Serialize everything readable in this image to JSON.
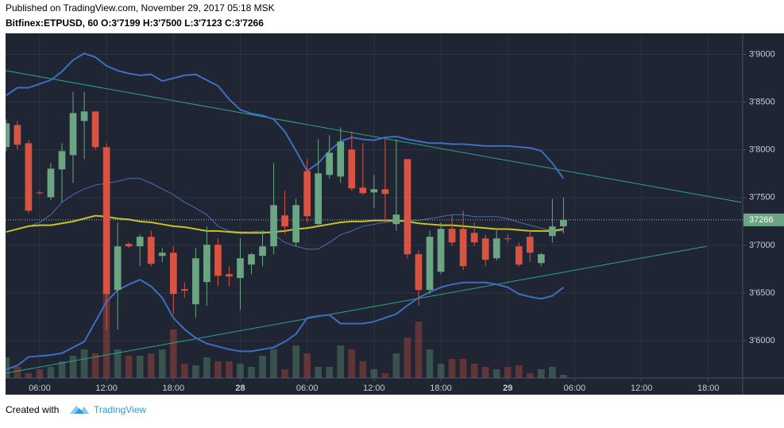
{
  "header": {
    "published": "Published on TradingView.com, November 29, 2017 05:18 MSK",
    "symbol_line": "Bitfinex:ETPUSD, 60 O:3'7199 H:3'7500 L:3'7123 C:3'7266"
  },
  "footer": {
    "created_with": "Created with",
    "brand": "TradingView"
  },
  "chart_data": {
    "type": "candlestick",
    "x": [
      3,
      4,
      5,
      6,
      7,
      8,
      9,
      10,
      11,
      12,
      13,
      14,
      15,
      16,
      17,
      18,
      19,
      20,
      21,
      22,
      23,
      24,
      25,
      26,
      27,
      28,
      29,
      30,
      31,
      32,
      33,
      34,
      35,
      36,
      37,
      38,
      39,
      40,
      41,
      42,
      43,
      44,
      45,
      46,
      47,
      48,
      49,
      50,
      51,
      52,
      53
    ],
    "open": [
      3.8028,
      3.826,
      3.8069,
      3.7554,
      3.7504,
      3.7795,
      3.7945,
      3.8302,
      3.8402,
      3.8028,
      3.6532,
      3.7014,
      3.6989,
      3.7089,
      3.6889,
      3.6922,
      3.654,
      3.6382,
      3.6615,
      3.7006,
      3.6698,
      3.6657,
      3.6798,
      3.6889,
      3.6989,
      3.7313,
      3.703,
      3.7778,
      3.7222,
      3.7737,
      3.772,
      3.8003,
      3.7604,
      3.7554,
      3.7587,
      3.7222,
      3.7903,
      3.6906,
      3.6532,
      3.6723,
      3.7172,
      3.7172,
      3.713,
      3.7072,
      3.6864,
      3.7072,
      3.6989,
      3.7089,
      3.6814,
      3.7097,
      3.7199
    ],
    "high": [
      3.8318,
      3.8302,
      3.8102,
      3.757,
      3.7861,
      3.8069,
      3.8609,
      3.8609,
      3.8402,
      3.8069,
      3.7238,
      3.703,
      3.7114,
      3.7155,
      3.6972,
      3.6989,
      3.6615,
      3.6972,
      3.7197,
      3.7072,
      3.6781,
      3.7072,
      3.6922,
      3.7155,
      3.7861,
      3.7571,
      3.7488,
      3.7903,
      3.8111,
      3.8152,
      3.8235,
      3.8194,
      3.8069,
      3.7737,
      3.8111,
      3.8111,
      3.7903,
      3.6947,
      3.7155,
      3.7238,
      3.7321,
      3.7363,
      3.7238,
      3.7114,
      3.7155,
      3.7114,
      3.703,
      3.7155,
      3.6922,
      3.7488,
      3.75
    ],
    "low": [
      3.7986,
      3.8003,
      3.7338,
      3.753,
      3.7471,
      3.7446,
      3.7654,
      3.7903,
      3.8003,
      3.6116,
      3.6116,
      3.6972,
      3.6781,
      3.6781,
      3.6823,
      3.6283,
      3.6449,
      3.6241,
      3.6366,
      3.6573,
      3.6573,
      3.6324,
      3.6698,
      3.6781,
      3.6906,
      3.7114,
      3.6989,
      3.7238,
      3.7197,
      3.7695,
      3.7654,
      3.7571,
      3.7529,
      3.7388,
      3.7238,
      3.7155,
      3.6864,
      3.6366,
      3.649,
      3.6698,
      3.6989,
      3.674,
      3.6989,
      3.6781,
      3.684,
      3.703,
      3.6773,
      3.6823,
      3.6781,
      3.703,
      3.7123
    ],
    "close": [
      3.8277,
      3.8053,
      3.7363,
      3.7546,
      3.7803,
      3.7986,
      3.8385,
      3.8402,
      3.8028,
      3.649,
      3.6989,
      3.6989,
      3.7089,
      3.6806,
      3.6922,
      3.649,
      3.6524,
      3.6864,
      3.7006,
      3.6681,
      3.6673,
      3.6864,
      3.6906,
      3.6989,
      3.7421,
      3.7197,
      3.7421,
      3.7305,
      3.7753,
      3.7969,
      3.8086,
      3.7596,
      3.7546,
      3.7587,
      3.7537,
      3.7322,
      3.6906,
      3.6532,
      3.7089,
      3.7172,
      3.703,
      3.6781,
      3.703,
      3.6848,
      3.7072,
      3.7064,
      3.6798,
      3.6922,
      3.6906,
      3.7197,
      3.7266
    ],
    "volume": [
      26,
      14,
      6,
      11,
      14,
      21,
      28,
      36,
      31,
      106,
      36,
      28,
      28,
      31,
      36,
      61,
      18,
      16,
      26,
      21,
      21,
      18,
      14,
      28,
      36,
      11,
      41,
      31,
      14,
      14,
      41,
      36,
      21,
      11,
      6,
      31,
      51,
      71,
      36,
      18,
      24,
      24,
      18,
      14,
      11,
      14,
      16,
      6,
      11,
      14,
      4
    ],
    "volume_lim": [
      0,
      120
    ],
    "up_color": "#6ba583",
    "down_color": "#d75442",
    "lines": [
      {
        "color": "#3e6ec4",
        "width": 2,
        "values": [
          3.857,
          3.865,
          3.865,
          3.869,
          3.873,
          3.882,
          3.894,
          3.901,
          3.897,
          3.888,
          3.883,
          3.88,
          3.878,
          3.879,
          3.872,
          3.875,
          3.878,
          3.879,
          3.873,
          3.867,
          3.853,
          3.842,
          3.838,
          3.836,
          3.832,
          3.819,
          3.799,
          3.778,
          3.786,
          3.799,
          3.809,
          3.813,
          3.811,
          3.81,
          3.813,
          3.814,
          3.811,
          3.809,
          3.807,
          3.807,
          3.806,
          3.806,
          3.805,
          3.804,
          3.804,
          3.804,
          3.803,
          3.802,
          3.799,
          3.786,
          3.77
        ]
      },
      {
        "color": "#3e6ec4",
        "width": 2,
        "values": [
          3.57,
          3.574,
          3.583,
          3.584,
          3.585,
          3.587,
          3.593,
          3.599,
          3.62,
          3.641,
          3.653,
          3.659,
          3.664,
          3.657,
          3.645,
          3.624,
          3.612,
          3.603,
          3.597,
          3.594,
          3.591,
          3.589,
          3.589,
          3.591,
          3.593,
          3.599,
          3.607,
          3.624,
          3.626,
          3.627,
          3.618,
          3.618,
          3.618,
          3.62,
          3.624,
          3.628,
          3.637,
          3.645,
          3.651,
          3.656,
          3.659,
          3.661,
          3.661,
          3.661,
          3.659,
          3.656,
          3.649,
          3.646,
          3.644,
          3.647,
          3.656
        ]
      },
      {
        "color": "#4a6fb0",
        "width": 1,
        "values": [
          3.714,
          3.717,
          3.72,
          3.724,
          3.732,
          3.745,
          3.753,
          3.759,
          3.763,
          3.765,
          3.767,
          3.77,
          3.77,
          3.765,
          3.759,
          3.753,
          3.745,
          3.739,
          3.732,
          3.72,
          3.715,
          3.714,
          3.714,
          3.715,
          3.711,
          3.703,
          3.699,
          3.696,
          3.696,
          3.703,
          3.711,
          3.715,
          3.72,
          3.722,
          3.724,
          3.725,
          3.726,
          3.726,
          3.728,
          3.73,
          3.732,
          3.732,
          3.73,
          3.73,
          3.73,
          3.728,
          3.724,
          3.721,
          3.718,
          3.715,
          3.715
        ]
      },
      {
        "color": "#c8c41e",
        "width": 2,
        "values": [
          3.714,
          3.717,
          3.72,
          3.721,
          3.721,
          3.723,
          3.725,
          3.728,
          3.731,
          3.73,
          3.728,
          3.727,
          3.725,
          3.724,
          3.722,
          3.72,
          3.719,
          3.717,
          3.715,
          3.715,
          3.714,
          3.713,
          3.713,
          3.713,
          3.714,
          3.715,
          3.717,
          3.718,
          3.72,
          3.722,
          3.724,
          3.725,
          3.725,
          3.726,
          3.726,
          3.726,
          3.725,
          3.723,
          3.722,
          3.721,
          3.721,
          3.72,
          3.719,
          3.718,
          3.717,
          3.717,
          3.716,
          3.715,
          3.715,
          3.715,
          3.717
        ]
      }
    ],
    "trend_lines": [
      {
        "color": "#2aa78a",
        "x": [
          2.94,
          68.94
        ],
        "values": [
          3.883,
          3.745
        ]
      },
      {
        "color": "#2aa78a",
        "x": [
          2.94,
          65.87
        ],
        "values": [
          3.566,
          3.699
        ]
      }
    ],
    "last_price": {
      "value": 3.7266,
      "label": "37266",
      "color": "#6ba583"
    },
    "xlim": [
      2.94,
      69.08
    ],
    "ylim": [
      3.561,
      3.922
    ],
    "xticks": [
      {
        "value": 6,
        "label": "06:00"
      },
      {
        "value": 12,
        "label": "12:00"
      },
      {
        "value": 18,
        "label": "18:00"
      },
      {
        "value": 24,
        "label": "28"
      },
      {
        "value": 30,
        "label": "06:00"
      },
      {
        "value": 36,
        "label": "12:00"
      },
      {
        "value": 42,
        "label": "18:00"
      },
      {
        "value": 48,
        "label": "29"
      },
      {
        "value": 54,
        "label": "06:00"
      },
      {
        "value": 60,
        "label": "12:00"
      },
      {
        "value": 66,
        "label": "18:00"
      }
    ],
    "yticks": [
      {
        "value": 3.6,
        "label": "3'6000"
      },
      {
        "value": 3.65,
        "label": "3'6500"
      },
      {
        "value": 3.7,
        "label": "3'7000"
      },
      {
        "value": 3.75,
        "label": "3'7500"
      },
      {
        "value": 3.8,
        "label": "3'8000"
      },
      {
        "value": 3.85,
        "label": "3'8500"
      },
      {
        "value": 3.9,
        "label": "3'9000"
      }
    ],
    "grid": true
  }
}
